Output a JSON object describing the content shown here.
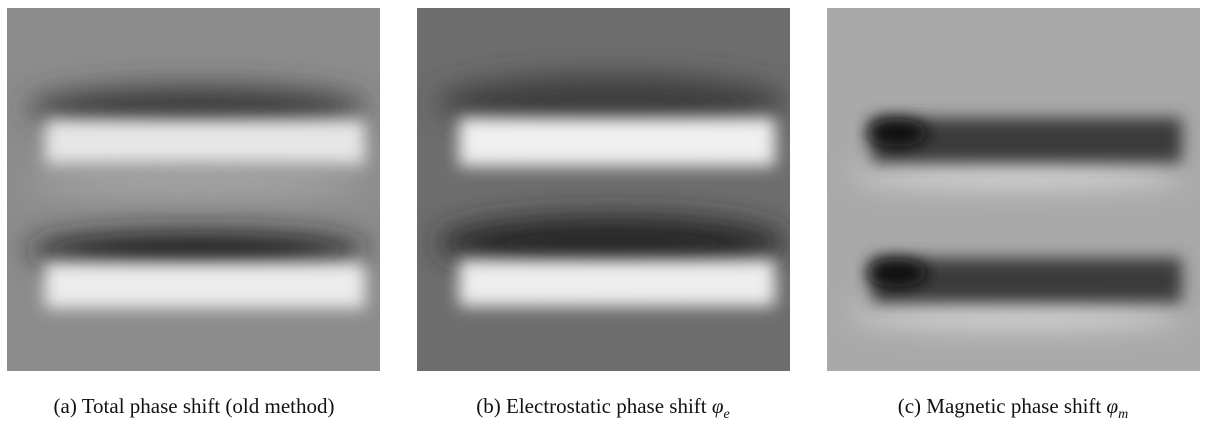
{
  "panels": [
    {
      "label": "(a)",
      "caption": "Total phase shift (old method)"
    },
    {
      "label": "(b)",
      "caption": "Electrostatic phase shift",
      "symbol": "φ",
      "subscript": "e"
    },
    {
      "label": "(c)",
      "caption": "Magnetic phase shift",
      "symbol": "φ",
      "subscript": "m"
    }
  ]
}
